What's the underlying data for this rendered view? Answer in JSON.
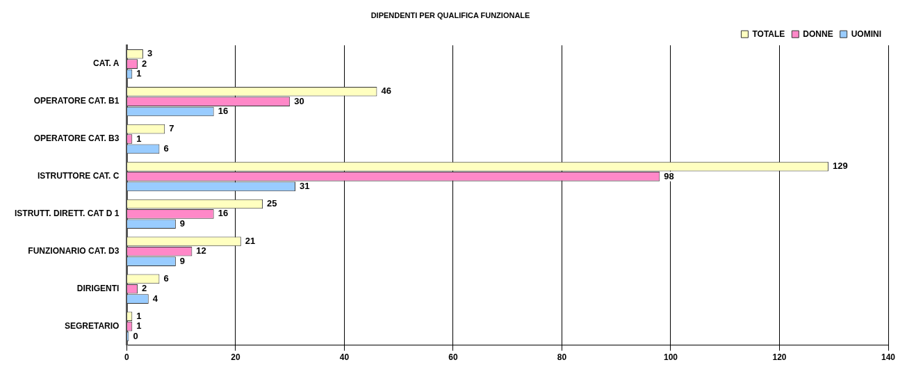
{
  "chart_data": {
    "type": "bar",
    "orientation": "horizontal",
    "title": "DIPENDENTI PER QUALIFICA FUNZIONALE",
    "categories": [
      "CAT. A",
      "OPERATORE CAT. B1",
      "OPERATORE CAT. B3",
      "ISTRUTTORE CAT. C",
      "ISTRUTT. DIRETT. CAT D 1",
      "FUNZIONARIO CAT. D3",
      "DIRIGENTI",
      "SEGRETARIO"
    ],
    "series": [
      {
        "name": "TOTALE",
        "color": "#ffffc0",
        "values": [
          3,
          46,
          7,
          129,
          25,
          21,
          6,
          1
        ]
      },
      {
        "name": "DONNE",
        "color": "#ff88c8",
        "values": [
          2,
          30,
          1,
          98,
          16,
          12,
          2,
          1
        ]
      },
      {
        "name": "UOMINI",
        "color": "#99ccff",
        "values": [
          1,
          16,
          6,
          31,
          9,
          9,
          4,
          0
        ]
      }
    ],
    "xlim": [
      0,
      140
    ],
    "xticks": [
      0,
      20,
      40,
      60,
      80,
      100,
      120,
      140
    ],
    "grid": "x",
    "legend": "top right",
    "data_labels": true
  }
}
